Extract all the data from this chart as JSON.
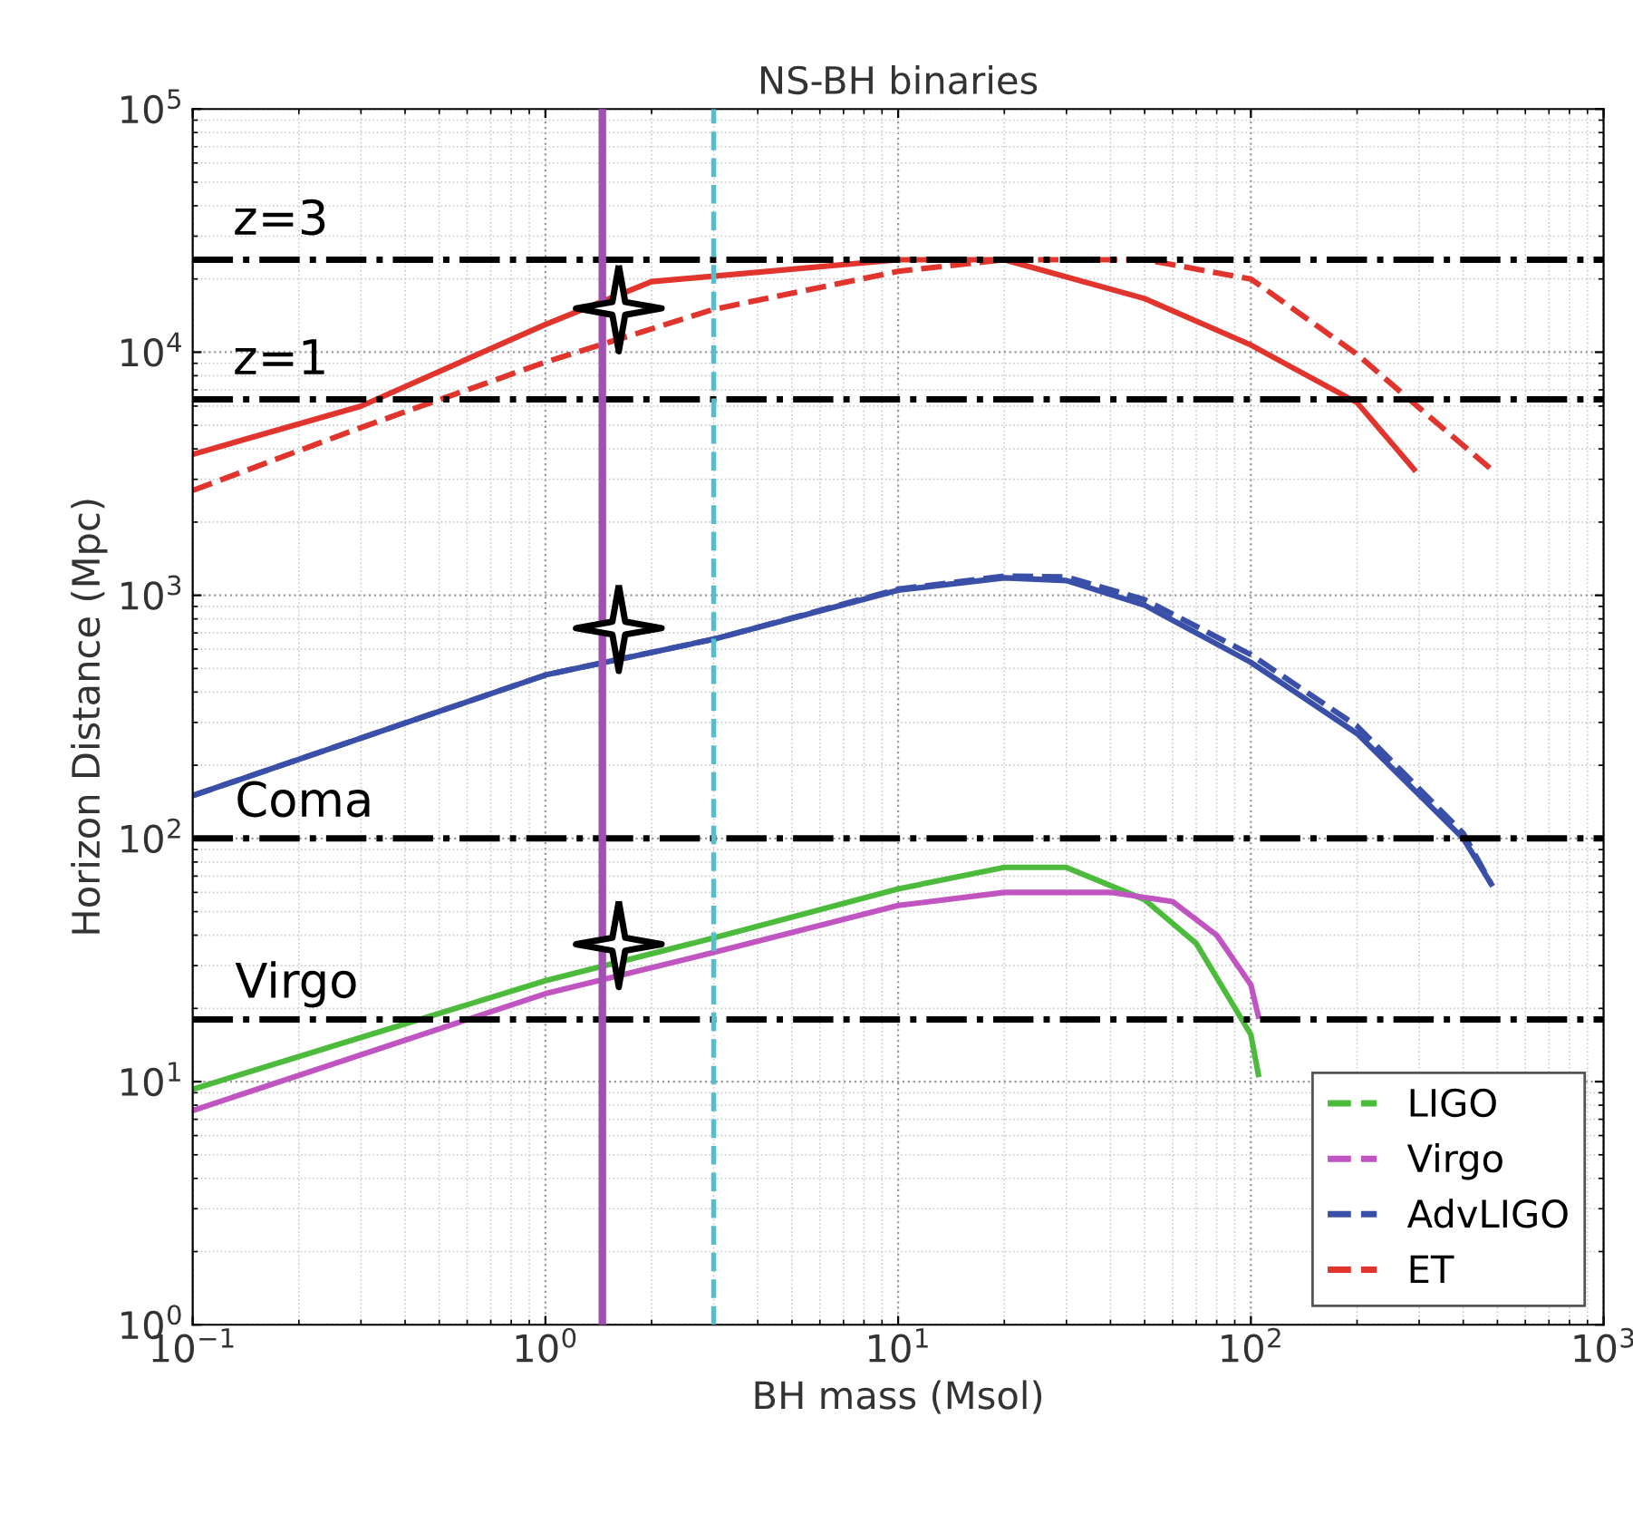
{
  "chart_data": {
    "type": "line",
    "title": "NS-BH binaries",
    "xlabel": "BH mass (Msol)",
    "ylabel": "Horizon Distance (Mpc)",
    "log": "xy",
    "xlim": [
      0.1,
      1000
    ],
    "ylim": [
      1,
      100000
    ],
    "xticks": [
      {
        "value": 0.1,
        "label": "10$^{−1}$"
      },
      {
        "value": 1,
        "label": "10$^{0}$"
      },
      {
        "value": 10,
        "label": "10$^{1}$"
      },
      {
        "value": 100,
        "label": "10$^{2}$"
      },
      {
        "value": 1000,
        "label": "10$^{3}$"
      }
    ],
    "yticks": [
      {
        "value": 1,
        "label": "10$^{0}$"
      },
      {
        "value": 10,
        "label": "10$^{1}$"
      },
      {
        "value": 100,
        "label": "10$^{2}$"
      },
      {
        "value": 1000,
        "label": "10$^{3}$"
      },
      {
        "value": 10000,
        "label": "10$^{4}$"
      },
      {
        "value": 100000,
        "label": "10$^{5}$"
      }
    ],
    "grid": true,
    "legend": "bottom right",
    "marker": "none",
    "series": [
      {
        "name": "LIGO",
        "color": "#4cbb3c",
        "line_style": "solid",
        "x": [
          0.1,
          1,
          3,
          10,
          20,
          30,
          50,
          70,
          100,
          105
        ],
        "values": [
          9.3,
          26,
          39,
          62,
          76,
          76,
          56,
          37,
          15.6,
          10.7
        ]
      },
      {
        "name": "Virgo",
        "color": "#c054c0",
        "line_style": "solid",
        "x": [
          0.1,
          1,
          3,
          10,
          20,
          40,
          60,
          80,
          100,
          105
        ],
        "values": [
          7.6,
          23,
          34,
          53,
          60,
          60,
          55,
          40,
          25,
          18.6
        ]
      },
      {
        "name": "AdvLIGO",
        "color": "#3a4fa8",
        "line_style": "solid",
        "x": [
          0.1,
          1,
          3,
          10,
          20,
          30,
          50,
          100,
          200,
          400,
          480
        ],
        "values": [
          150,
          470,
          660,
          1050,
          1180,
          1150,
          910,
          530,
          270,
          100,
          65
        ]
      },
      {
        "color": "#3a4fa8",
        "line_style": "dashed",
        "x": [
          0.1,
          1,
          3,
          10,
          20,
          30,
          50,
          100,
          200,
          400,
          480
        ],
        "values": [
          150,
          470,
          660,
          1060,
          1200,
          1190,
          960,
          570,
          290,
          105,
          65
        ]
      },
      {
        "name": "ET",
        "color": "#e0342c",
        "line_style": "solid",
        "x": [
          0.1,
          0.3,
          1,
          2,
          10,
          20,
          50,
          100,
          200,
          290
        ],
        "values": [
          3800,
          6000,
          13000,
          19500,
          24000,
          24000,
          16600,
          10700,
          6200,
          3300
        ]
      },
      {
        "color": "#e0342c",
        "line_style": "dashed",
        "x": [
          0.1,
          0.3,
          1,
          3,
          10,
          20,
          50,
          100,
          200,
          300,
          480
        ],
        "values": [
          2700,
          4900,
          9100,
          15000,
          21500,
          24000,
          24000,
          20000,
          9800,
          5900,
          3300
        ]
      }
    ],
    "ref_lines": [
      {
        "axis": "y",
        "value": 24000,
        "color": "#000000",
        "line_style": "dashdot"
      },
      {
        "axis": "y",
        "value": 6400,
        "color": "#000000",
        "line_style": "dashdot"
      },
      {
        "axis": "y",
        "value": 100,
        "label": "Coma",
        "color": "#000000",
        "line_style": "dashdot"
      },
      {
        "axis": "y",
        "value": 18,
        "label": "Virgo",
        "color": "#000000",
        "line_style": "dashdot"
      },
      {
        "axis": "x",
        "value": 1.45,
        "color": "#a050b0",
        "line_style": "solid"
      },
      {
        "axis": "x",
        "value": 3,
        "color": "#50c0d0",
        "line_style": "dashed"
      }
    ],
    "annotations": [
      {
        "text": "z=3",
        "x": 0.13,
        "y": 24000
      },
      {
        "text": "z=1",
        "x": 0.13,
        "y": 6400
      }
    ]
  }
}
